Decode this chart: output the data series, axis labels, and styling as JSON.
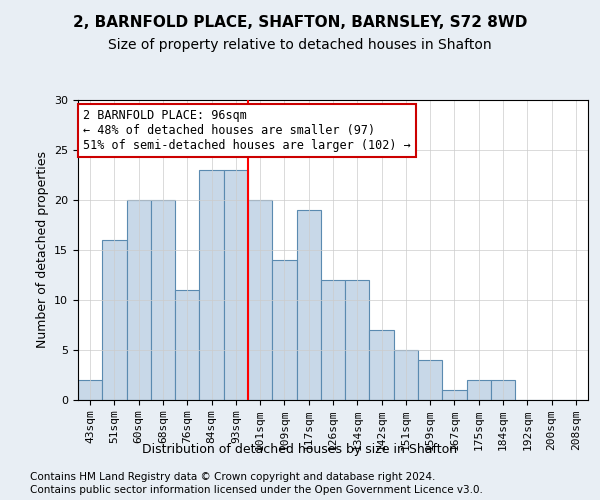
{
  "title": "2, BARNFOLD PLACE, SHAFTON, BARNSLEY, S72 8WD",
  "subtitle": "Size of property relative to detached houses in Shafton",
  "xlabel": "Distribution of detached houses by size in Shafton",
  "ylabel": "Number of detached properties",
  "categories": [
    "43sqm",
    "51sqm",
    "60sqm",
    "68sqm",
    "76sqm",
    "84sqm",
    "93sqm",
    "101sqm",
    "109sqm",
    "117sqm",
    "126sqm",
    "134sqm",
    "142sqm",
    "151sqm",
    "159sqm",
    "167sqm",
    "175sqm",
    "184sqm",
    "192sqm",
    "200sqm",
    "208sqm"
  ],
  "values": [
    2,
    16,
    20,
    20,
    11,
    23,
    23,
    20,
    14,
    19,
    12,
    12,
    7,
    5,
    4,
    1,
    2,
    2,
    0,
    0,
    0
  ],
  "bar_color": "#c8d8e8",
  "bar_edge_color": "#5a8ab0",
  "red_line_x": 6.5,
  "annotation_line1": "2 BARNFOLD PLACE: 96sqm",
  "annotation_line2": "← 48% of detached houses are smaller (97)",
  "annotation_line3": "51% of semi-detached houses are larger (102) →",
  "annotation_box_color": "#ffffff",
  "annotation_box_edge": "#cc0000",
  "ylim": [
    0,
    30
  ],
  "yticks": [
    0,
    5,
    10,
    15,
    20,
    25,
    30
  ],
  "footer1": "Contains HM Land Registry data © Crown copyright and database right 2024.",
  "footer2": "Contains public sector information licensed under the Open Government Licence v3.0.",
  "bg_color": "#e8eef4",
  "plot_bg_color": "#ffffff",
  "grid_color": "#cccccc",
  "title_fontsize": 11,
  "subtitle_fontsize": 10,
  "axis_label_fontsize": 9,
  "tick_fontsize": 8,
  "footer_fontsize": 7.5,
  "annotation_fontsize": 8.5
}
